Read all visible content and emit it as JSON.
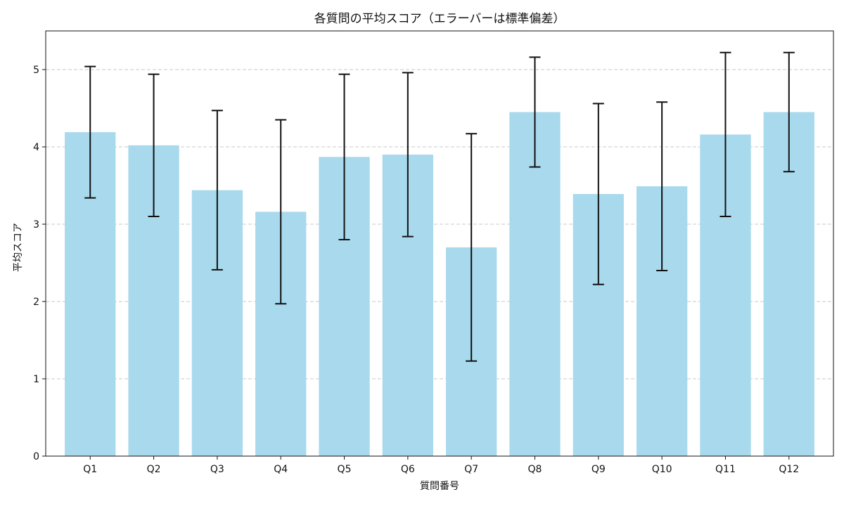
{
  "chart_data": {
    "type": "bar",
    "title": "各質問の平均スコア（エラーバーは標準偏差）",
    "xlabel": "質問番号",
    "ylabel": "平均スコア",
    "categories": [
      "Q1",
      "Q2",
      "Q3",
      "Q4",
      "Q5",
      "Q6",
      "Q7",
      "Q8",
      "Q9",
      "Q10",
      "Q11",
      "Q12"
    ],
    "values": [
      4.19,
      4.02,
      3.44,
      3.16,
      3.87,
      3.9,
      2.7,
      4.45,
      3.39,
      3.49,
      4.16,
      4.45
    ],
    "errors": [
      0.85,
      0.92,
      1.03,
      1.19,
      1.07,
      1.06,
      1.47,
      0.71,
      1.17,
      1.09,
      1.06,
      0.77
    ],
    "ylim": [
      0,
      5.5
    ],
    "yticks": [
      0,
      1,
      2,
      3,
      4,
      5
    ],
    "grid": "y-dashed",
    "colors": {
      "bar": "#a8d9ec",
      "error": "#111111",
      "grid": "#c8c8c8",
      "axis": "#111111"
    }
  }
}
